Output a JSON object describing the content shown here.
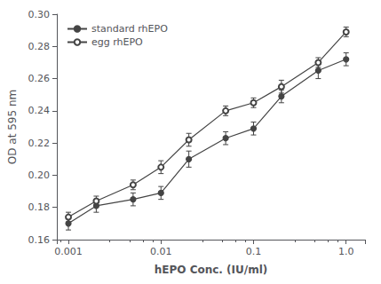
{
  "chart_data": {
    "type": "line",
    "xlabel": "hEPO Conc. (IU/ml)",
    "ylabel": "OD at 595 nm",
    "log": "x",
    "grid": false,
    "legend": "upper left",
    "x": [
      0.001,
      0.002,
      0.005,
      0.01,
      0.02,
      0.05,
      0.1,
      0.2,
      0.5,
      1.0
    ],
    "xlim": [
      0.00075,
      1.6
    ],
    "xticks": [
      0.001,
      0.01,
      0.1,
      {
        "value": 1.0,
        "label": "1.0"
      }
    ],
    "ylim": [
      0.16,
      0.3
    ],
    "yticks": [
      0.16,
      0.18,
      {
        "value": 0.2,
        "label": "0.20"
      },
      0.22,
      0.24,
      0.26,
      0.28,
      {
        "value": 0.3,
        "label": "0.30"
      }
    ],
    "series": [
      {
        "name": "standard rhEPO",
        "color": "#444444",
        "marker": "filled_circle",
        "values": [
          0.17,
          0.181,
          0.185,
          0.189,
          0.21,
          0.223,
          0.229,
          0.249,
          0.265,
          0.272
        ],
        "err": [
          0.004,
          0.004,
          0.004,
          0.004,
          0.005,
          0.004,
          0.004,
          0.004,
          0.005,
          0.004
        ]
      },
      {
        "name": "egg rhEPO",
        "color": "#444444",
        "marker": "open_circle",
        "values": [
          0.174,
          0.184,
          0.194,
          0.205,
          0.222,
          0.24,
          0.245,
          0.255,
          0.27,
          0.289
        ],
        "err": [
          0.003,
          0.003,
          0.003,
          0.004,
          0.004,
          0.003,
          0.003,
          0.004,
          0.003,
          0.003
        ]
      }
    ]
  }
}
